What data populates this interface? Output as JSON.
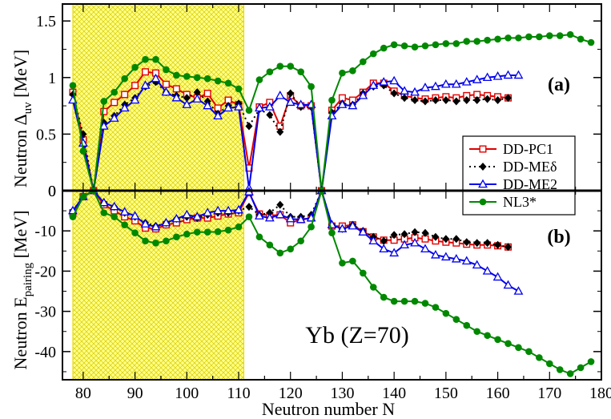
{
  "chart_data": [
    {
      "panel": "(a)",
      "type": "line",
      "panel_label": "(a)",
      "ylabel": "Neutron Δuv [MeV]",
      "ylabel_parts": {
        "main": "Neutron  Δ",
        "sub": "uv",
        "unit": "  [MeV]"
      },
      "xlim": [
        76,
        180
      ],
      "ylim": [
        0,
        1.65
      ],
      "yticks": [
        0,
        0.5,
        1,
        1.5
      ],
      "ytick_labels": [
        "0",
        "0.5",
        "1",
        "1.5"
      ],
      "highlight_band": {
        "x": [
          78,
          111
        ],
        "color": "#ffff88"
      },
      "series": [
        {
          "name": "DD-PC1",
          "color": "#e00000",
          "marker": "open-square",
          "dash": "none",
          "x": [
            78,
            80,
            82,
            84,
            86,
            88,
            90,
            92,
            94,
            96,
            98,
            100,
            102,
            104,
            106,
            108,
            110,
            112,
            114,
            116,
            118,
            120,
            122,
            124,
            126,
            128,
            130,
            132,
            134,
            136,
            138,
            140,
            142,
            144,
            146,
            148,
            150,
            152,
            154,
            156,
            158,
            160,
            162
          ],
          "y": [
            0.87,
            0.45,
            0,
            0.7,
            0.78,
            0.85,
            0.93,
            1.05,
            1.04,
            0.94,
            0.9,
            0.85,
            0.82,
            0.86,
            0.73,
            0.8,
            0.76,
            0.2,
            0.74,
            0.78,
            0.57,
            0.84,
            0.75,
            0.75,
            0,
            0.71,
            0.82,
            0.8,
            0.87,
            0.95,
            0.95,
            0.88,
            0.84,
            0.82,
            0.81,
            0.82,
            0.83,
            0.82,
            0.84,
            0.85,
            0.84,
            0.83,
            0.82
          ]
        },
        {
          "name": "DD-MEδ",
          "color": "#000000",
          "marker": "filled-diamond",
          "dash": "dot",
          "x": [
            78,
            80,
            82,
            84,
            86,
            88,
            90,
            92,
            94,
            96,
            98,
            100,
            102,
            104,
            106,
            108,
            110,
            112,
            114,
            116,
            118,
            120,
            122,
            124,
            126,
            128,
            130,
            132,
            134,
            136,
            138,
            140,
            142,
            144,
            146,
            148,
            150,
            152,
            154,
            156,
            158,
            160,
            162
          ],
          "y": [
            0.85,
            0.5,
            0,
            0.6,
            0.66,
            0.76,
            0.82,
            0.92,
            0.96,
            0.87,
            0.84,
            0.82,
            0.87,
            0.79,
            0.68,
            0.75,
            0.77,
            0.57,
            0.72,
            0.67,
            0.52,
            0.86,
            0.74,
            0.74,
            0,
            0.69,
            0.77,
            0.76,
            0.86,
            0.92,
            0.93,
            0.86,
            0.82,
            0.8,
            0.79,
            0.8,
            0.8,
            0.79,
            0.8,
            0.8,
            0.81,
            0.8,
            0.82
          ]
        },
        {
          "name": "DD-ME2",
          "color": "#0000ee",
          "marker": "open-triangle",
          "dash": "none",
          "x": [
            78,
            80,
            82,
            84,
            86,
            88,
            90,
            92,
            94,
            96,
            98,
            100,
            102,
            104,
            106,
            108,
            110,
            112,
            114,
            116,
            118,
            120,
            122,
            124,
            126,
            128,
            130,
            132,
            134,
            136,
            138,
            140,
            142,
            144,
            146,
            148,
            150,
            152,
            154,
            156,
            158,
            160,
            162,
            164
          ],
          "y": [
            0.8,
            0.42,
            0,
            0.57,
            0.64,
            0.73,
            0.8,
            0.93,
            0.99,
            0.87,
            0.82,
            0.76,
            0.81,
            0.75,
            0.66,
            0.73,
            0.74,
            0.02,
            0.73,
            0.74,
            0.84,
            0.78,
            0.76,
            0.76,
            0,
            0.66,
            0.76,
            0.75,
            0.84,
            0.93,
            0.96,
            0.97,
            0.88,
            0.87,
            0.91,
            0.92,
            0.94,
            0.94,
            0.96,
            0.98,
            1.0,
            1.01,
            1.02,
            1.02
          ]
        },
        {
          "name": "NL3*",
          "color": "#008800",
          "marker": "filled-circle",
          "dash": "none",
          "x": [
            78,
            80,
            82,
            84,
            86,
            88,
            90,
            92,
            94,
            96,
            98,
            100,
            102,
            104,
            106,
            108,
            110,
            112,
            114,
            116,
            118,
            120,
            122,
            124,
            126,
            128,
            130,
            132,
            134,
            136,
            138,
            140,
            142,
            144,
            146,
            148,
            150,
            152,
            154,
            156,
            158,
            160,
            162,
            164,
            166,
            168,
            170,
            172,
            174,
            176,
            178
          ],
          "y": [
            0.93,
            0.35,
            0,
            0.79,
            0.87,
            0.99,
            1.09,
            1.16,
            1.16,
            1.07,
            1.02,
            1.01,
            1.0,
            0.99,
            0.97,
            0.95,
            0.9,
            0.71,
            0.98,
            1.05,
            1.1,
            1.1,
            1.05,
            0.92,
            0,
            0.8,
            1.04,
            1.06,
            1.14,
            1.21,
            1.26,
            1.29,
            1.28,
            1.27,
            1.28,
            1.29,
            1.3,
            1.3,
            1.32,
            1.32,
            1.33,
            1.34,
            1.35,
            1.35,
            1.36,
            1.36,
            1.37,
            1.37,
            1.38,
            1.34,
            1.31
          ]
        }
      ]
    },
    {
      "panel": "(b)",
      "type": "line",
      "panel_label": "(b)",
      "ylabel": "Neutron Epairing [MeV]",
      "ylabel_parts": {
        "main": "Neutron  E",
        "sub": "pairing",
        "unit": "  [MeV]"
      },
      "xlabel": "Neutron  number  N",
      "annotation": "Yb (Z=70)",
      "xlim": [
        76,
        180
      ],
      "ylim": [
        -47,
        0
      ],
      "xticks": [
        80,
        90,
        100,
        110,
        120,
        130,
        140,
        150,
        160,
        170,
        180
      ],
      "xtick_labels": [
        "80",
        "90",
        "100",
        "110",
        "120",
        "130",
        "140",
        "150",
        "160",
        "170",
        "180"
      ],
      "yticks": [
        0,
        -10,
        -20,
        -30,
        -40
      ],
      "ytick_labels": [
        "0",
        "-10",
        "-20",
        "-30",
        "-40"
      ],
      "highlight_band": {
        "x": [
          78,
          111
        ],
        "color": "#ffff88"
      },
      "series": [
        {
          "name": "DD-PC1",
          "color": "#e00000",
          "marker": "open-square",
          "dash": "none",
          "x": [
            78,
            80,
            82,
            84,
            86,
            88,
            90,
            92,
            94,
            96,
            98,
            100,
            102,
            104,
            106,
            108,
            110,
            112,
            114,
            116,
            118,
            120,
            122,
            124,
            126,
            128,
            130,
            132,
            134,
            136,
            138,
            140,
            142,
            144,
            146,
            148,
            150,
            152,
            154,
            156,
            158,
            160,
            162
          ],
          "y": [
            -5.5,
            -1.5,
            0,
            -3.5,
            -5,
            -6.5,
            -7.5,
            -9.3,
            -9.5,
            -8.5,
            -8,
            -7.2,
            -6.8,
            -6.8,
            -6.3,
            -5.8,
            -5.5,
            -0.5,
            -5.8,
            -6.2,
            -6,
            -8,
            -7.2,
            -6.8,
            0,
            -8.8,
            -8.8,
            -8.5,
            -10.2,
            -11.5,
            -12.3,
            -12.3,
            -12,
            -11.7,
            -12,
            -12.5,
            -12.8,
            -13,
            -13.3,
            -13.5,
            -13.5,
            -13.7,
            -14
          ]
        },
        {
          "name": "DD-MEδ",
          "color": "#000000",
          "marker": "filled-diamond",
          "dash": "dot",
          "x": [
            78,
            80,
            82,
            84,
            86,
            88,
            90,
            92,
            94,
            96,
            98,
            100,
            102,
            104,
            106,
            108,
            110,
            112,
            114,
            116,
            118,
            120,
            122,
            124,
            126,
            128,
            130,
            132,
            134,
            136,
            138,
            140,
            142,
            144,
            146,
            148,
            150,
            152,
            154,
            156,
            158,
            160,
            162
          ],
          "y": [
            -5,
            -1.5,
            0,
            -3,
            -4,
            -5.5,
            -6.5,
            -8,
            -8.8,
            -8,
            -7,
            -6.5,
            -6.8,
            -6,
            -5.5,
            -5.5,
            -5,
            -4,
            -6,
            -5.5,
            -3.5,
            -6.5,
            -6.5,
            -6,
            0,
            -8.5,
            -9.5,
            -8.5,
            -10,
            -11.5,
            -12.5,
            -11,
            -10.8,
            -10.3,
            -10.5,
            -11.5,
            -12,
            -12,
            -12.8,
            -13,
            -13,
            -13.5,
            -14
          ]
        },
        {
          "name": "DD-ME2",
          "color": "#0000ee",
          "marker": "open-triangle",
          "dash": "none",
          "x": [
            78,
            80,
            82,
            84,
            86,
            88,
            90,
            92,
            94,
            96,
            98,
            100,
            102,
            104,
            106,
            108,
            110,
            112,
            114,
            116,
            118,
            120,
            122,
            124,
            126,
            128,
            130,
            132,
            134,
            136,
            138,
            140,
            142,
            144,
            146,
            148,
            150,
            152,
            154,
            156,
            158,
            160,
            162,
            164
          ],
          "y": [
            -5,
            -1.5,
            0,
            -3,
            -4,
            -5.3,
            -6.3,
            -8.3,
            -9,
            -8,
            -7,
            -6,
            -6.5,
            -5.5,
            -5,
            -5,
            -4.8,
            -0.3,
            -6.3,
            -6.8,
            -6,
            -7,
            -7.2,
            -6.8,
            0,
            -8.5,
            -9.5,
            -8.8,
            -10.3,
            -12.5,
            -14.5,
            -15.5,
            -13.5,
            -13,
            -14.5,
            -16,
            -16.5,
            -17,
            -17.5,
            -18.5,
            -20,
            -21.5,
            -23.5,
            -25
          ]
        },
        {
          "name": "NL3*",
          "color": "#008800",
          "marker": "filled-circle",
          "dash": "none",
          "x": [
            78,
            80,
            82,
            84,
            86,
            88,
            90,
            92,
            94,
            96,
            98,
            100,
            102,
            104,
            106,
            108,
            110,
            112,
            114,
            116,
            118,
            120,
            122,
            124,
            126,
            128,
            130,
            132,
            134,
            136,
            138,
            140,
            142,
            144,
            146,
            148,
            150,
            152,
            154,
            156,
            158,
            160,
            162,
            164,
            166,
            168,
            170,
            172,
            174,
            176,
            178
          ],
          "y": [
            -6.5,
            -1.5,
            0,
            -5.5,
            -6.5,
            -8.5,
            -10.5,
            -12.5,
            -13,
            -12.5,
            -11.5,
            -10.8,
            -10.3,
            -10.3,
            -10.2,
            -9.8,
            -9,
            -6.5,
            -11.5,
            -13.5,
            -15.5,
            -14.5,
            -12.5,
            -9,
            0,
            -10.5,
            -18,
            -17.5,
            -20.5,
            -24,
            -26.5,
            -27.5,
            -27.5,
            -27.5,
            -28,
            -29,
            -30.5,
            -32,
            -33.5,
            -35,
            -36,
            -37,
            -38,
            -39,
            -40,
            -41.5,
            -43,
            -44.5,
            -45.5,
            -44,
            -42.5
          ]
        }
      ]
    }
  ],
  "legend": {
    "placement": "right-center",
    "entries": [
      "DD-PC1",
      "DD-MEδ",
      "DD-ME2",
      "NL3*"
    ]
  }
}
